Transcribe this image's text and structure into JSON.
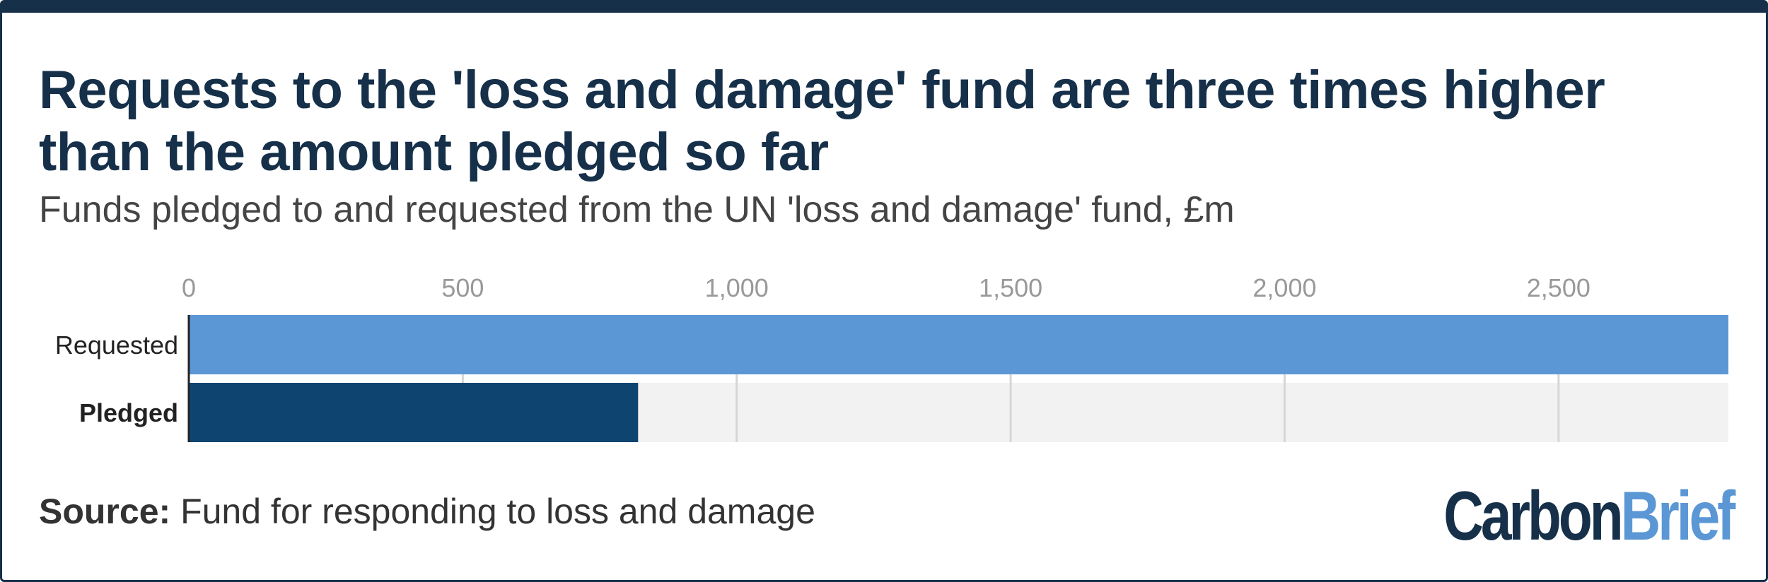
{
  "header": {
    "title": "Requests to the 'loss and damage' fund are three times higher than the amount pledged so far",
    "subtitle": "Funds pledged to and requested from the UN 'loss and damage' fund, £m"
  },
  "footer": {
    "source_label": "Source:",
    "source_text": "Fund for responding to loss and damage",
    "logo_part1": "Carbon",
    "logo_part2": "Brief"
  },
  "colors": {
    "requested": "#5b97d5",
    "pledged": "#0d4570",
    "track": "#f2f2f2",
    "title": "#16304a"
  },
  "chart_data": {
    "type": "bar",
    "orientation": "horizontal",
    "categories": [
      "Requested",
      "Pledged"
    ],
    "values": [
      2810,
      820
    ],
    "xlim": [
      0,
      2810
    ],
    "xticks": [
      0,
      500,
      1000,
      1500,
      2000,
      2500
    ],
    "xtick_labels": [
      "0",
      "500",
      "1,000",
      "1,500",
      "2,000",
      "2,500"
    ],
    "axis_position": "top",
    "grid": true,
    "bold_categories": [
      "Pledged"
    ]
  }
}
